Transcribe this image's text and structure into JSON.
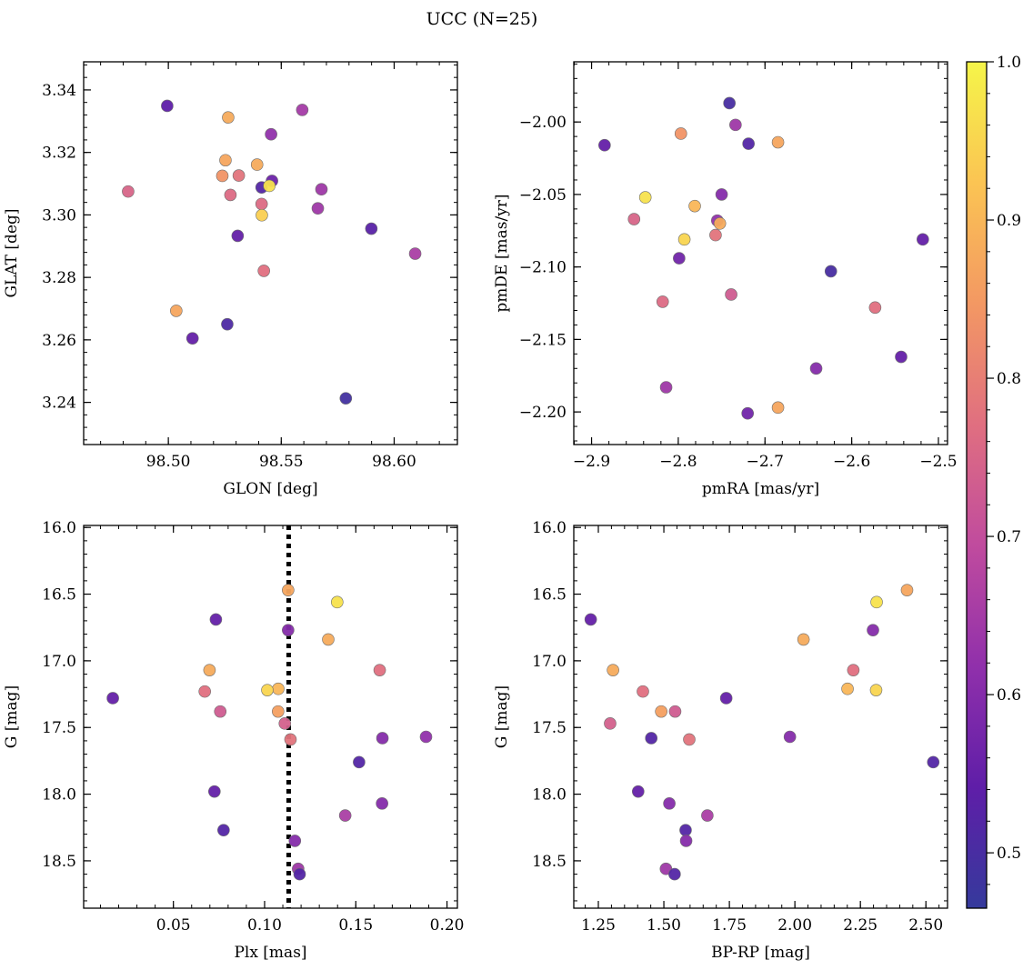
{
  "title": "UCC (N=25)",
  "colorbar": {
    "range": [
      0.465,
      1.0
    ],
    "ticks": [
      0.5,
      0.6,
      0.7,
      0.8,
      0.9,
      1.0
    ],
    "tick_labels": [
      "0.5",
      "0.6",
      "0.7",
      "0.8",
      "0.9",
      "1.0"
    ],
    "colormap": "plasma",
    "gradient_colors": [
      "#353a9c",
      "#5f1ea8",
      "#9030ab",
      "#c04b9e",
      "#e06f80",
      "#f39863",
      "#fbc453",
      "#f5f549"
    ]
  },
  "chart_data": [
    {
      "type": "scatter",
      "xlabel": "GLON [deg]",
      "ylabel": "GLAT [deg]",
      "xlim": [
        98.4625,
        98.628
      ],
      "ylim": [
        3.2265,
        3.349
      ],
      "x_ticks": [
        98.5,
        98.55,
        98.6
      ],
      "x_tick_labels": [
        "98.50",
        "98.55",
        "98.60"
      ],
      "y_ticks": [
        3.24,
        3.26,
        3.28,
        3.3,
        3.32,
        3.34
      ],
      "y_tick_labels": [
        "3.24",
        "3.26",
        "3.28",
        "3.30",
        "3.32",
        "3.34"
      ],
      "x": [
        98.4995,
        98.5265,
        98.5455,
        98.5593,
        98.4822,
        98.5253,
        98.5239,
        98.5312,
        98.5393,
        98.5275,
        98.5459,
        98.5413,
        98.5447,
        98.5678,
        98.5413,
        98.5662,
        98.5414,
        98.5307,
        98.5899,
        98.6093,
        98.5423,
        98.5035,
        98.5261,
        98.5107,
        98.5786
      ],
      "y": [
        3.3349,
        3.3312,
        3.3258,
        3.3336,
        3.3075,
        3.3175,
        3.3125,
        3.3126,
        3.3161,
        3.3064,
        3.3109,
        3.3088,
        3.3093,
        3.3082,
        3.3035,
        3.3021,
        3.2999,
        3.2933,
        3.2956,
        3.2876,
        3.2821,
        3.2693,
        3.265,
        3.2605,
        3.2413
      ],
      "c": [
        0.54,
        0.88,
        0.62,
        0.65,
        0.75,
        0.87,
        0.84,
        0.78,
        0.88,
        0.76,
        0.56,
        0.52,
        0.97,
        0.64,
        0.76,
        0.64,
        0.94,
        0.55,
        0.53,
        0.66,
        0.77,
        0.87,
        0.51,
        0.55,
        0.49
      ]
    },
    {
      "type": "scatter",
      "xlabel": "pmRA [mas/yr]",
      "ylabel": "pmDE [mas/yr]",
      "xlim": [
        -2.9205,
        -2.4895
      ],
      "ylim": [
        -2.2225,
        -1.9585
      ],
      "x_ticks": [
        -2.9,
        -2.8,
        -2.7,
        -2.6,
        -2.5
      ],
      "x_tick_labels": [
        "−2.9",
        "−2.8",
        "−2.7",
        "−2.6",
        "−2.5"
      ],
      "y_ticks": [
        -2.2,
        -2.15,
        -2.1,
        -2.05,
        -2.0
      ],
      "y_tick_labels": [
        "−2.20",
        "−2.15",
        "−2.10",
        "−2.05",
        "−2.00"
      ],
      "x": [
        -2.741,
        -2.734,
        -2.797,
        -2.885,
        -2.719,
        -2.685,
        -2.838,
        -2.75,
        -2.781,
        -2.851,
        -2.755,
        -2.752,
        -2.757,
        -2.793,
        -2.518,
        -2.799,
        -2.624,
        -2.818,
        -2.739,
        -2.573,
        -2.543,
        -2.641,
        -2.814,
        -2.72,
        -2.685
      ],
      "y": [
        -1.987,
        -2.002,
        -2.008,
        -2.016,
        -2.015,
        -2.014,
        -2.052,
        -2.05,
        -2.058,
        -2.067,
        -2.068,
        -2.07,
        -2.078,
        -2.081,
        -2.081,
        -2.094,
        -2.103,
        -2.124,
        -2.119,
        -2.128,
        -2.162,
        -2.17,
        -2.183,
        -2.201,
        -2.197
      ],
      "c": [
        0.5,
        0.64,
        0.84,
        0.55,
        0.52,
        0.87,
        0.97,
        0.6,
        0.9,
        0.75,
        0.62,
        0.88,
        0.78,
        0.95,
        0.55,
        0.57,
        0.5,
        0.76,
        0.73,
        0.77,
        0.55,
        0.6,
        0.64,
        0.57,
        0.87
      ]
    },
    {
      "type": "scatter",
      "xlabel": "Plx [mas]",
      "ylabel": "G [mag]",
      "xlim": [
        0.0008,
        0.2057
      ],
      "ylim": [
        18.855,
        15.985
      ],
      "x_ticks": [
        0.05,
        0.1,
        0.15,
        0.2
      ],
      "x_tick_labels": [
        "0.05",
        "0.10",
        "0.15",
        "0.20"
      ],
      "y_ticks": [
        16.0,
        16.5,
        17.0,
        17.5,
        18.0,
        18.5
      ],
      "y_tick_labels": [
        "16.0",
        "16.5",
        "17.0",
        "17.5",
        "18.0",
        "18.5"
      ],
      "vline_x": 0.1132,
      "x": [
        0.1129,
        0.1398,
        0.0733,
        0.1129,
        0.1349,
        0.1631,
        0.0698,
        0.0672,
        0.1075,
        0.1015,
        0.0168,
        0.0757,
        0.1074,
        0.1111,
        0.1142,
        0.1885,
        0.1646,
        0.1518,
        0.0725,
        0.1644,
        0.1442,
        0.0775,
        0.1166,
        0.1184,
        0.1192
      ],
      "y": [
        16.47,
        16.56,
        16.69,
        16.77,
        16.84,
        17.07,
        17.07,
        17.23,
        17.21,
        17.22,
        17.28,
        17.38,
        17.38,
        17.47,
        17.59,
        17.57,
        17.58,
        17.76,
        17.98,
        18.07,
        18.16,
        18.27,
        18.35,
        18.56,
        18.6
      ],
      "c": [
        0.87,
        0.97,
        0.55,
        0.6,
        0.88,
        0.77,
        0.88,
        0.77,
        0.9,
        0.95,
        0.55,
        0.73,
        0.86,
        0.74,
        0.78,
        0.62,
        0.6,
        0.52,
        0.55,
        0.6,
        0.66,
        0.52,
        0.6,
        0.64,
        0.52
      ]
    },
    {
      "type": "scatter",
      "xlabel": "BP-RP [mag]",
      "ylabel": "G [mag]",
      "xlim": [
        1.1563,
        2.5825
      ],
      "ylim": [
        18.855,
        15.985
      ],
      "x_ticks": [
        1.25,
        1.5,
        1.75,
        2.0,
        2.25,
        2.5
      ],
      "x_tick_labels": [
        "1.25",
        "1.50",
        "1.75",
        "2.00",
        "2.25",
        "2.50"
      ],
      "y_ticks": [
        16.0,
        16.5,
        17.0,
        17.5,
        18.0,
        18.5
      ],
      "y_tick_labels": [
        "16.0",
        "16.5",
        "17.0",
        "17.5",
        "18.0",
        "18.5"
      ],
      "x": [
        2.428,
        2.312,
        1.221,
        2.298,
        2.033,
        1.306,
        2.223,
        1.42,
        2.201,
        2.31,
        1.738,
        1.295,
        1.49,
        1.543,
        1.452,
        1.597,
        1.981,
        2.528,
        1.402,
        1.521,
        1.666,
        1.583,
        1.585,
        1.508,
        1.541
      ],
      "y": [
        16.47,
        16.56,
        16.69,
        16.77,
        16.84,
        17.07,
        17.07,
        17.23,
        17.21,
        17.22,
        17.28,
        17.47,
        17.38,
        17.38,
        17.58,
        17.59,
        17.57,
        17.76,
        17.98,
        18.07,
        18.16,
        18.27,
        18.35,
        18.56,
        18.6
      ],
      "c": [
        0.87,
        0.97,
        0.55,
        0.6,
        0.88,
        0.88,
        0.77,
        0.77,
        0.9,
        0.95,
        0.55,
        0.74,
        0.86,
        0.73,
        0.52,
        0.78,
        0.6,
        0.52,
        0.55,
        0.6,
        0.66,
        0.52,
        0.6,
        0.64,
        0.52
      ]
    }
  ]
}
